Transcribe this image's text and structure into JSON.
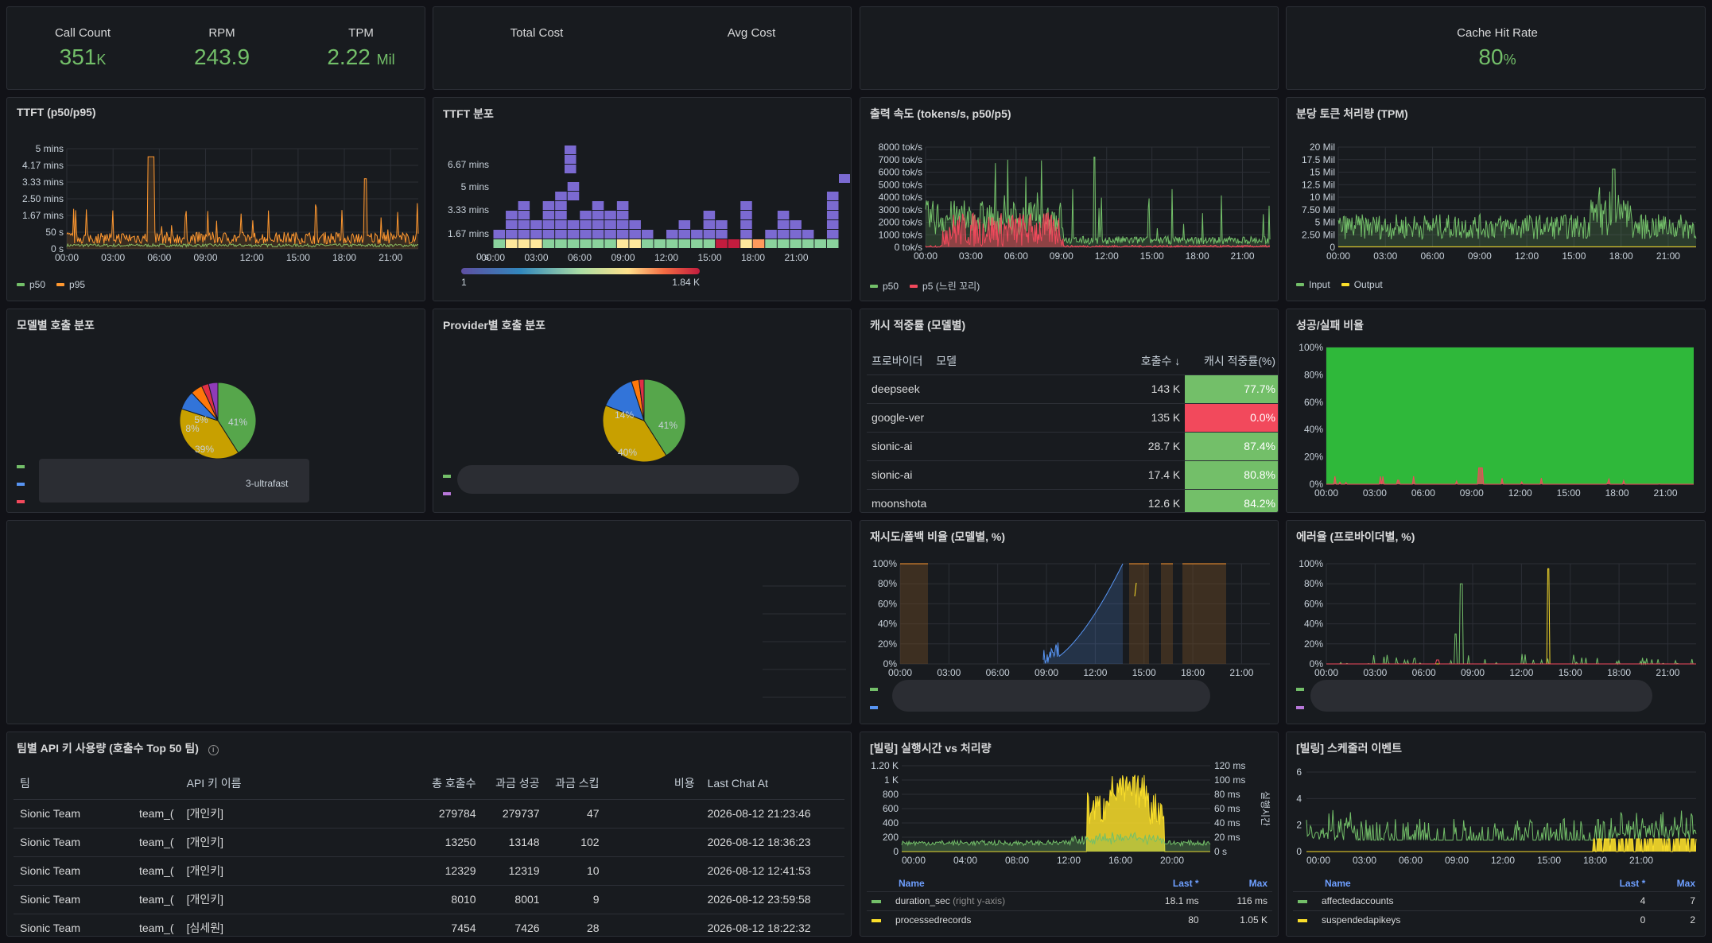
{
  "colors": {
    "green": "#73bf69",
    "orange": "#ff9830",
    "red": "#f2495c",
    "yellow": "#fade2a",
    "blue": "#5794f2",
    "purple": "#b877d9",
    "heat": "#7b6ad1"
  },
  "stats1": {
    "call_label": "Call Count",
    "call_value": "351",
    "call_unit": "K",
    "rpm_label": "RPM",
    "rpm_value": "243.9",
    "tpm_label": "TPM",
    "tpm_value": "2.22",
    "tpm_unit": "Mil"
  },
  "stats2": {
    "total_cost_label": "Total Cost",
    "avg_cost_label": "Avg Cost"
  },
  "stats4": {
    "cache_label": "Cache Hit Rate",
    "cache_value": "80",
    "cache_unit": "%"
  },
  "time_ticks": [
    "00:00",
    "03:00",
    "06:00",
    "09:00",
    "12:00",
    "15:00",
    "18:00",
    "21:00"
  ],
  "ttft": {
    "title": "TTFT (p50/p95)",
    "yticks": [
      "5 mins",
      "4.17 mins",
      "3.33 mins",
      "2.50 mins",
      "1.67 mins",
      "50 s",
      "0 s"
    ],
    "legend": [
      "p50",
      "p95"
    ]
  },
  "ttft_hist": {
    "title": "TTFT 분포",
    "yticks": [
      "6.67 mins",
      "5 mins",
      "3.33 mins",
      "1.67 mins",
      "0 s"
    ],
    "scale_min": "1",
    "scale_max": "1.84 K"
  },
  "speed": {
    "title": "출력 속도 (tokens/s, p50/p5)",
    "yticks": [
      "8000 tok/s",
      "7000 tok/s",
      "6000 tok/s",
      "5000 tok/s",
      "4000 tok/s",
      "3000 tok/s",
      "2000 tok/s",
      "1000 tok/s",
      "0 tok/s"
    ],
    "legend": [
      "p50",
      "p5 (느린 꼬리)"
    ]
  },
  "tpm_chart": {
    "title": "분당 토큰 처리량 (TPM)",
    "yticks": [
      "20 Mil",
      "17.5 Mil",
      "15 Mil",
      "12.5 Mil",
      "10 Mil",
      "7.50 Mil",
      "5 Mil",
      "2.50 Mil",
      "0"
    ],
    "legend": [
      "Input",
      "Output"
    ]
  },
  "model_pie": {
    "title": "모델별 호출 분포",
    "labels": [
      "41%",
      "39%",
      "8%",
      "5%"
    ],
    "legend_tail": "3-ultrafast"
  },
  "provider_pie": {
    "title": "Provider별 호출 분포",
    "labels": [
      "41%",
      "40%",
      "14%"
    ]
  },
  "cache_table": {
    "title": "캐시 적중률 (모델별)",
    "headers": [
      "프로바이더",
      "모델",
      "호출수 ↓",
      "캐시 적중률(%)"
    ],
    "rows": [
      {
        "provider": "deepseek",
        "calls": "143 K",
        "rate": "77.7%"
      },
      {
        "provider": "google-ver",
        "calls": "135 K",
        "rate": "0.0%"
      },
      {
        "provider": "sionic-ai",
        "calls": "28.7 K",
        "rate": "87.4%"
      },
      {
        "provider": "sionic-ai",
        "calls": "17.4 K",
        "rate": "80.8%"
      },
      {
        "provider": "moonshota",
        "calls": "12.6 K",
        "rate": "84.2%"
      }
    ]
  },
  "success": {
    "title": "성공/실패 비율",
    "yticks": [
      "100%",
      "80%",
      "60%",
      "40%",
      "20%",
      "0%"
    ]
  },
  "retry": {
    "title": "재시도/폴백 비율 (모델별, %)",
    "yticks": [
      "100%",
      "80%",
      "60%",
      "40%",
      "20%",
      "0%"
    ]
  },
  "error": {
    "title": "에러율 (프로바이더별, %)",
    "yticks": [
      "100%",
      "80%",
      "60%",
      "40%",
      "20%",
      "0%"
    ]
  },
  "team_table": {
    "title": "팀별 API 키 사용량 (호출수 Top 50 팀)",
    "headers": [
      "팀",
      "",
      "API 키 이름",
      "총 호출수",
      "과금 성공",
      "과금 스킵",
      "비용",
      "Last Chat At"
    ],
    "rows": [
      {
        "team": "Sionic Team",
        "key": "team_(",
        "name": "[개인키]",
        "total": "279784",
        "ok": "279737",
        "skip": "47",
        "last": "2026-08-12 21:23:46"
      },
      {
        "team": "Sionic Team",
        "key": "team_(",
        "name": "[개인키]",
        "total": "13250",
        "ok": "13148",
        "skip": "102",
        "last": "2026-08-12 18:36:23"
      },
      {
        "team": "Sionic Team",
        "key": "team_(",
        "name": "[개인키]",
        "total": "12329",
        "ok": "12319",
        "skip": "10",
        "last": "2026-08-12 12:41:53"
      },
      {
        "team": "Sionic Team",
        "key": "team_(",
        "name": "[개인키]",
        "total": "8010",
        "ok": "8001",
        "skip": "9",
        "last": "2026-08-12 23:59:58"
      },
      {
        "team": "Sionic Team",
        "key": "team_(",
        "name": "[심세원]",
        "total": "7454",
        "ok": "7426",
        "skip": "28",
        "last": "2026-08-12 18:22:32"
      }
    ]
  },
  "billing_exec": {
    "title": "[빌링] 실행시간 vs 처리량",
    "yticks": [
      "1.20 K",
      "1 K",
      "800",
      "600",
      "400",
      "200",
      "0"
    ],
    "yticks_right": [
      "120 ms",
      "100 ms",
      "80 ms",
      "60 ms",
      "40 ms",
      "20 ms",
      "0 s"
    ],
    "right_axis": "실행시간",
    "xticks": [
      "00:00",
      "04:00",
      "08:00",
      "12:00",
      "16:00",
      "20:00"
    ],
    "headers": [
      "Name",
      "Last *",
      "Max"
    ],
    "rows": [
      {
        "name": "duration_sec",
        "note": "(right y-axis)",
        "last": "18.1 ms",
        "max": "116 ms"
      },
      {
        "name": "processedrecords",
        "note": "",
        "last": "80",
        "max": "1.05 K"
      }
    ]
  },
  "billing_sched": {
    "title": "[빌링] 스케줄러 이벤트",
    "yticks": [
      "6",
      "4",
      "2",
      "0"
    ],
    "headers": [
      "Name",
      "Last *",
      "Max"
    ],
    "rows": [
      {
        "name": "affectedaccounts",
        "last": "4",
        "max": "7"
      },
      {
        "name": "suspendedapikeys",
        "last": "0",
        "max": "2"
      }
    ]
  }
}
